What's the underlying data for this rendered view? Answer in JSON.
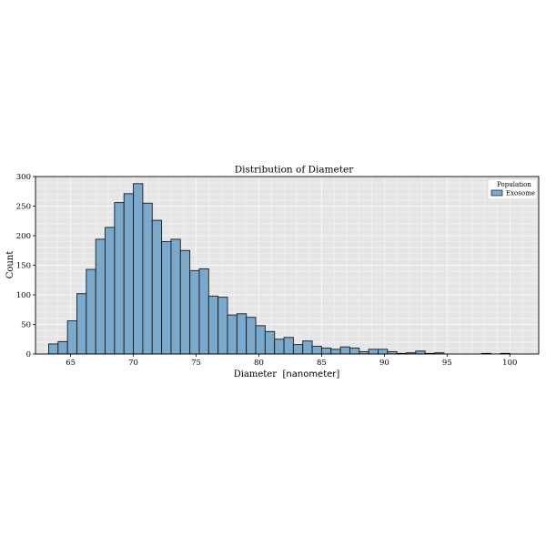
{
  "chart_data": {
    "type": "bar",
    "title": "Distribution of Diameter",
    "xlabel": "Diameter",
    "xunit": "nanometer",
    "ylabel": "Count",
    "xlim": [
      62.2,
      102.3
    ],
    "ylim": [
      0,
      300
    ],
    "xticks": [
      65,
      70,
      75,
      80,
      85,
      90,
      95,
      100
    ],
    "yticks": [
      0,
      50,
      100,
      150,
      200,
      250,
      300
    ],
    "grid": true,
    "legend": {
      "title": "Population",
      "placement": "top-right"
    },
    "colors": {
      "bar_fill": "#7aa9cb",
      "bar_edge": "#1a1a1a",
      "plot_bg": "#e5e5e5",
      "grid": "#f8f8f8"
    },
    "bin_width": 0.75,
    "series": [
      {
        "name": "Exosome",
        "bin_start": [
          63.25,
          64.0,
          64.75,
          65.5,
          66.25,
          67.0,
          67.75,
          68.5,
          69.25,
          70.0,
          70.75,
          71.5,
          72.25,
          73.0,
          73.75,
          74.5,
          75.25,
          76.0,
          76.75,
          77.5,
          78.25,
          79.0,
          79.75,
          80.5,
          81.25,
          82.0,
          82.75,
          83.5,
          84.25,
          85.0,
          85.75,
          86.5,
          87.25,
          88.0,
          88.75,
          89.5,
          90.25,
          91.0,
          91.75,
          92.5,
          93.25,
          94.0,
          94.75,
          95.5,
          96.25,
          97.0,
          97.75,
          98.5,
          99.25,
          100.0
        ],
        "counts": [
          17,
          21,
          56,
          102,
          143,
          194,
          214,
          256,
          271,
          288,
          255,
          226,
          190,
          194,
          175,
          141,
          144,
          98,
          96,
          66,
          68,
          62,
          48,
          38,
          25,
          28,
          16,
          22,
          13,
          10,
          8,
          12,
          10,
          4,
          8,
          8,
          4,
          1,
          2,
          5,
          1,
          2,
          0,
          0,
          0,
          0,
          1,
          0,
          1,
          0
        ]
      }
    ]
  }
}
